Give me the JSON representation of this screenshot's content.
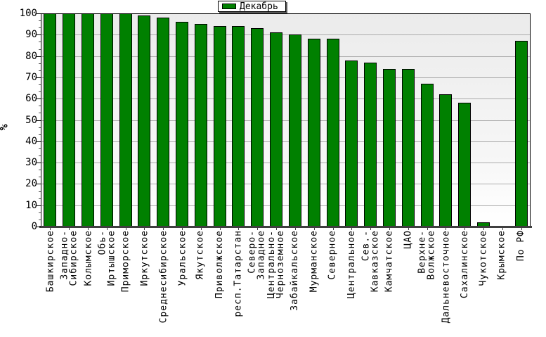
{
  "chart_data": {
    "type": "bar",
    "title": "",
    "xlabel": "",
    "ylabel": "%",
    "ylim": [
      0,
      100
    ],
    "ytick_step": 10,
    "yminor_per_interval": 3,
    "grid": "horizontal",
    "legend": {
      "position": "top-center",
      "entries": [
        {
          "label": "Декабрь",
          "color": "#008000"
        }
      ]
    },
    "categories": [
      "Башкирское",
      "Западно-\nСибирское",
      "Колымское",
      "Обь-\nИртышское",
      "Приморское",
      "Иркутское",
      "Среднесибирское",
      "Уральское",
      "Якутское",
      "Приволжское",
      "респ.Татарстан",
      "Северо-\nЗападное",
      "Центрально-\nЧерноземное",
      "Забайкальское",
      "Мурманское",
      "Северное",
      "Центральное",
      "Сев.-\nКавказское",
      "Камчатское",
      "ЦАО",
      "Верхне-\nВолжское",
      "Дальневосточное",
      "Сахалинское",
      "Чукотское",
      "Крымское",
      "По РФ"
    ],
    "series": [
      {
        "name": "Декабрь",
        "color": "#008000",
        "values": [
          100,
          100,
          100,
          100,
          100,
          99,
          98,
          96,
          95,
          94,
          94,
          93,
          91,
          90,
          88,
          88,
          78,
          77,
          74,
          74,
          67,
          62,
          58,
          2,
          0,
          87
        ]
      }
    ],
    "colors": {
      "bar_fill": "#008000",
      "bar_border": "#000000",
      "gridline": "#ababab",
      "axis_line": "#3f3f3f",
      "plot_bg_top": "#ebebeb",
      "plot_bg_bottom": "#ffffff"
    }
  }
}
